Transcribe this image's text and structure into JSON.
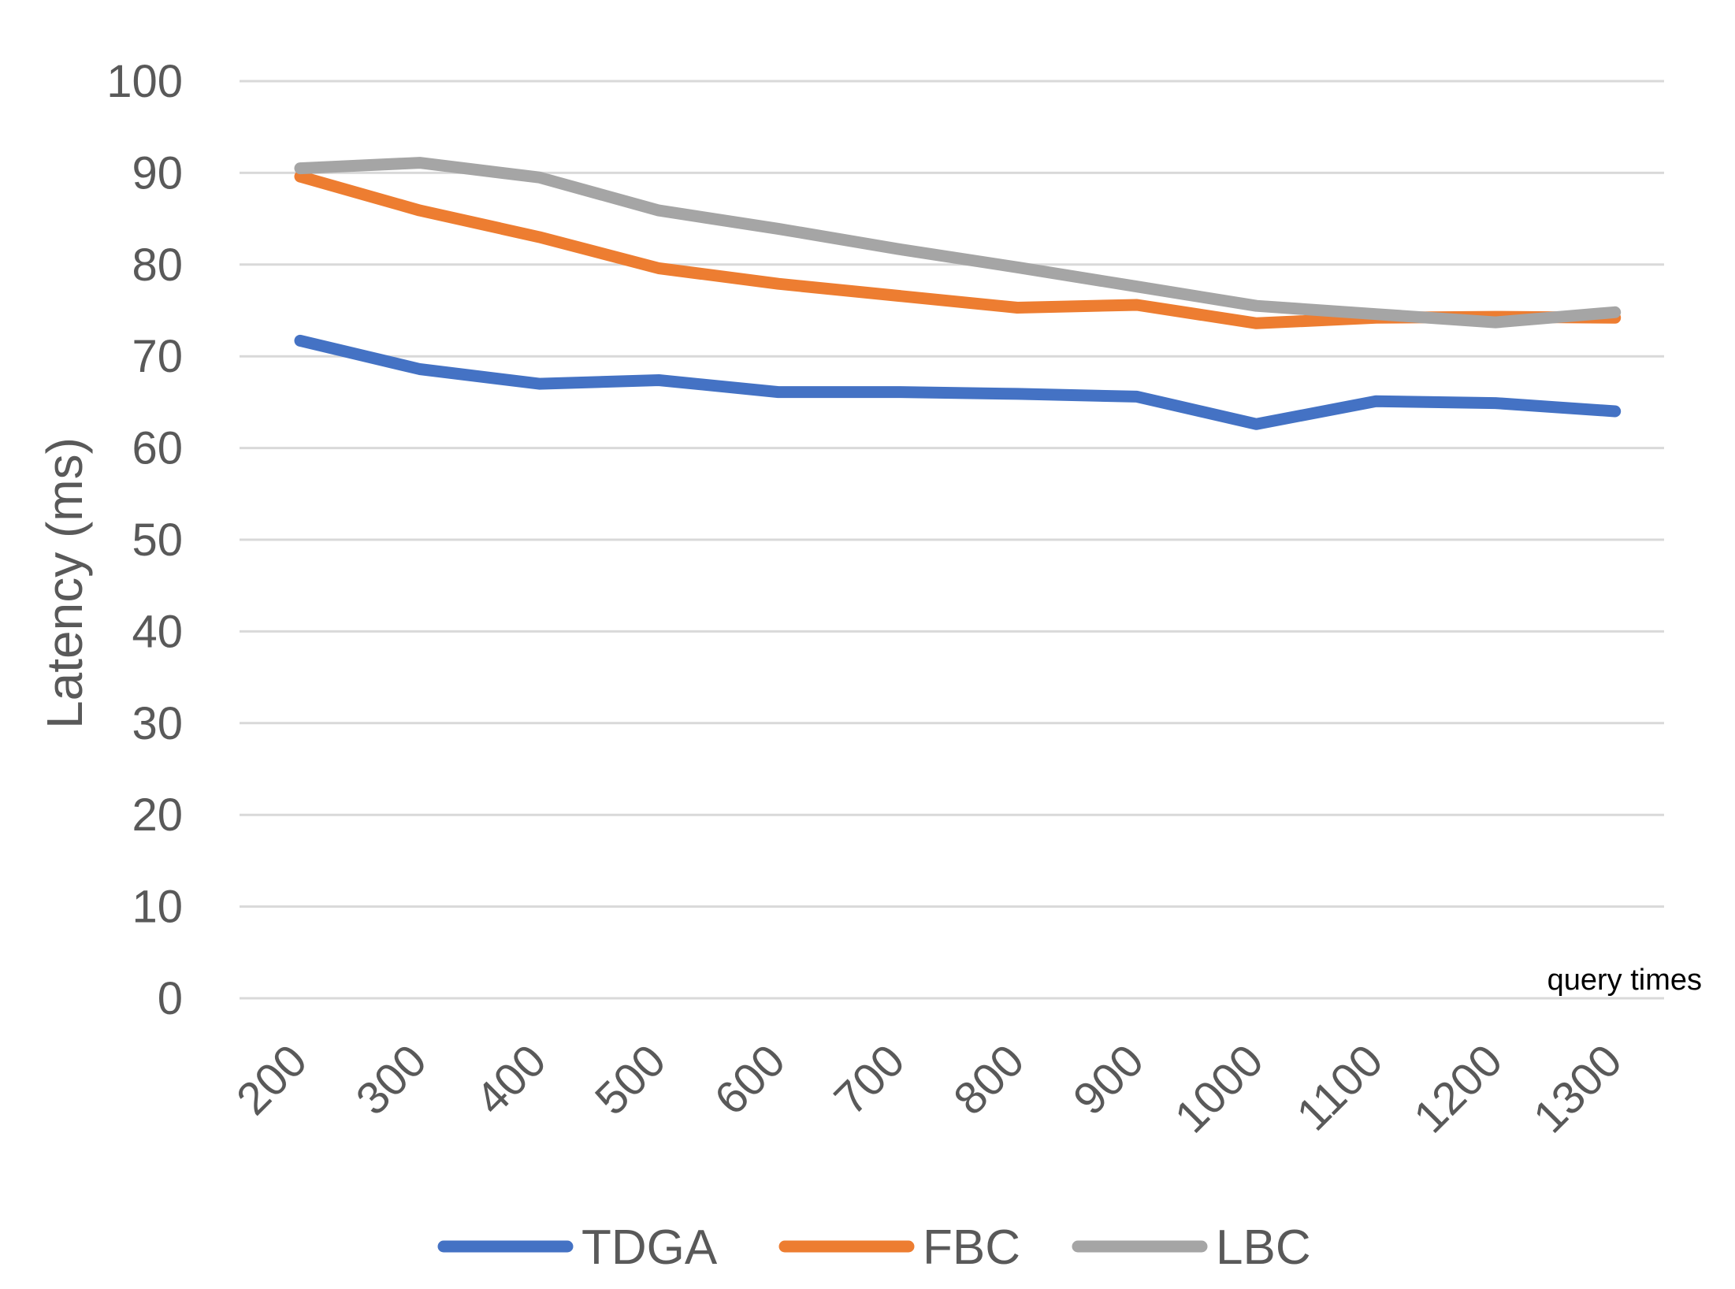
{
  "chart_data": {
    "type": "line",
    "title": "",
    "xlabel": "query times",
    "ylabel": "Latency (ms)",
    "categories": [
      "200",
      "300",
      "400",
      "500",
      "600",
      "700",
      "800",
      "900",
      "1000",
      "1100",
      "1200",
      "1300"
    ],
    "ylim": [
      0,
      100
    ],
    "yticks": [
      "0",
      "10",
      "20",
      "30",
      "40",
      "50",
      "60",
      "70",
      "80",
      "90",
      "100"
    ],
    "grid": true,
    "legend_position": "bottom",
    "series": [
      {
        "name": "TDGA",
        "color": "#4472C4",
        "values": [
          71.7,
          68.6,
          67.0,
          67.4,
          66.1,
          66.1,
          65.9,
          65.6,
          62.6,
          65.1,
          64.9,
          64.0
        ]
      },
      {
        "name": "FBC",
        "color": "#ED7D31",
        "values": [
          89.6,
          85.9,
          83.0,
          79.6,
          77.9,
          76.6,
          75.3,
          75.6,
          73.6,
          74.2,
          74.3,
          74.2
        ]
      },
      {
        "name": "LBC",
        "color": "#A5A5A5",
        "values": [
          90.5,
          91.1,
          89.5,
          85.9,
          83.9,
          81.7,
          79.7,
          77.6,
          75.5,
          74.6,
          73.7,
          74.8
        ]
      }
    ]
  }
}
